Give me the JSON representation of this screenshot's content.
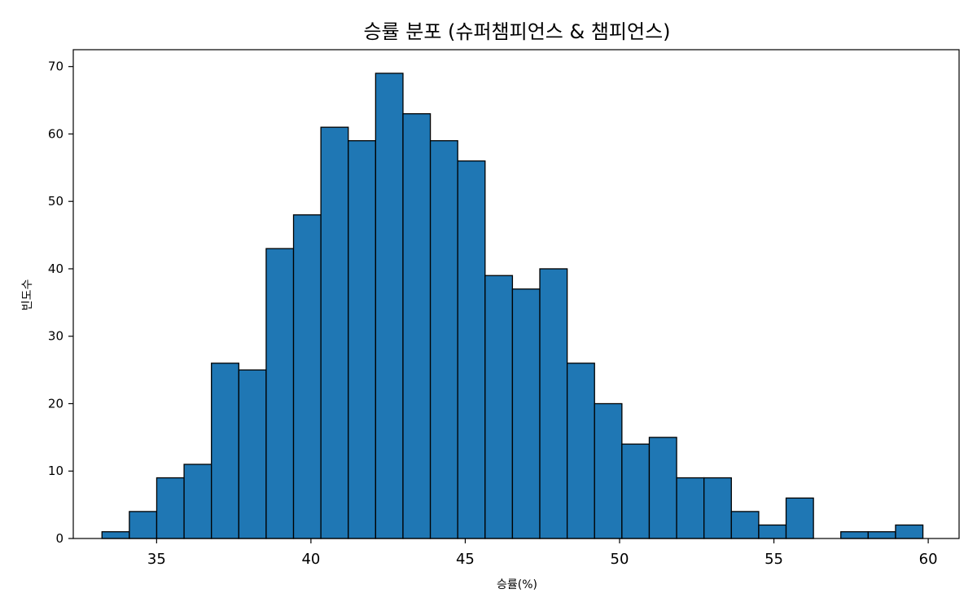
{
  "chart_data": {
    "type": "bar",
    "title": "승률 분포 (슈퍼챔피언스 & 챔피언스)",
    "xlabel": "승률(%)",
    "ylabel": "빈도수",
    "xlim": [
      32.3,
      61.0
    ],
    "ylim": [
      0,
      72.5
    ],
    "x_ticks": [
      "35",
      "40",
      "45",
      "50",
      "55",
      "60"
    ],
    "y_ticks": [
      "0",
      "10",
      "20",
      "30",
      "40",
      "50",
      "60",
      "70"
    ],
    "grid": false,
    "bar_color": "#1f77b4",
    "edge_color": "#000000",
    "bin_start": 33.23,
    "bin_width": 0.8866,
    "values": [
      1,
      4,
      9,
      11,
      26,
      25,
      43,
      48,
      61,
      59,
      69,
      63,
      59,
      56,
      39,
      37,
      40,
      26,
      20,
      14,
      15,
      9,
      9,
      4,
      2,
      6,
      0,
      1,
      1,
      2
    ]
  }
}
